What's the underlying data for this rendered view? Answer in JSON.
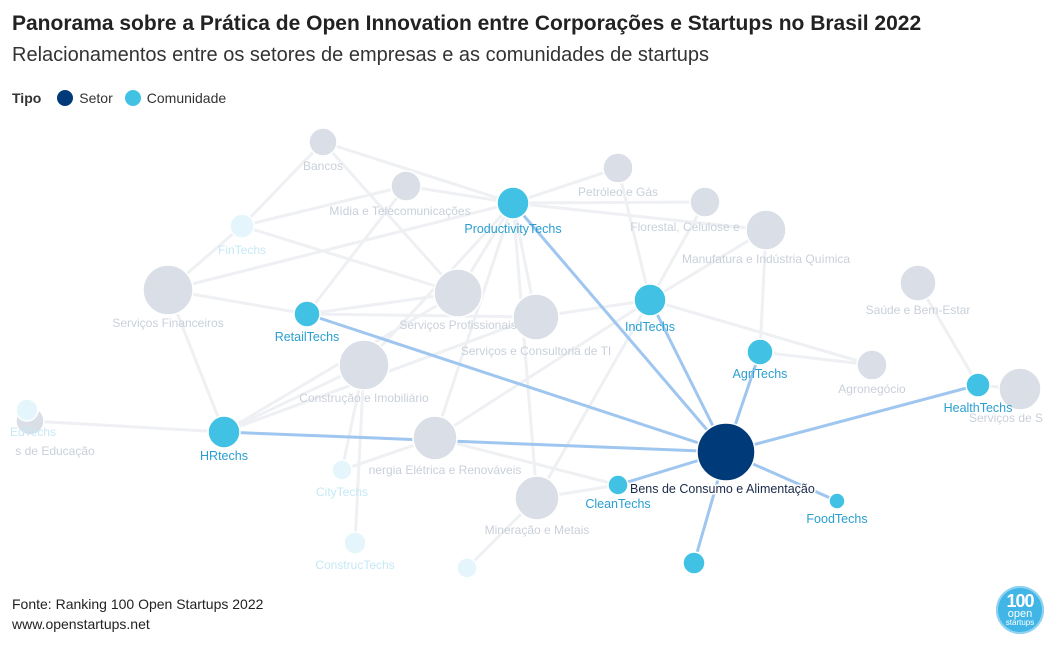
{
  "header": {
    "title": "Panorama sobre a Prática de Open Innovation entre Corporações e Startups no Brasil 2022",
    "subtitle": "Relacionamentos entre os setores de empresas e as comunidades de startups"
  },
  "legend": {
    "title": "Tipo",
    "items": [
      {
        "label": "Setor",
        "color": "#003a79"
      },
      {
        "label": "Comunidade",
        "color": "#41c2e4"
      }
    ]
  },
  "footer": {
    "source": "Fonte: Ranking 100 Open Startups 2022",
    "url": "www.openstartups.net"
  },
  "logo": {
    "line1": "100",
    "line2": "open",
    "line3": "startups"
  },
  "colors": {
    "setor_highlight": "#003a79",
    "comunidade_highlight": "#41c2e4",
    "setor_faded": "#dadfe7",
    "comunidade_faded": "#e4f5fb",
    "edge_highlight": "#9fc6ef",
    "edge_faded": "#eef0f3",
    "label_setor_highlight": "#1a2a4a",
    "label_comunidade_highlight": "#2a9fcf",
    "label_setor_faded": "#c9d0da",
    "label_comunidade_faded": "#c5e8f5"
  },
  "chart_data": {
    "type": "network",
    "focus_node": "Bens de Consumo e Alimentação",
    "nodes": [
      {
        "id": "Bens de Consumo e Alimentação",
        "type": "Setor",
        "highlighted": true
      },
      {
        "id": "Bancos",
        "type": "Setor",
        "highlighted": false
      },
      {
        "id": "Mídia e Telecomunicações",
        "type": "Setor",
        "highlighted": false
      },
      {
        "id": "Petróleo e Gás",
        "type": "Setor",
        "highlighted": false
      },
      {
        "id": "Florestal, Celulose e",
        "type": "Setor",
        "highlighted": false
      },
      {
        "id": "Manufatura e Indústria Química",
        "type": "Setor",
        "highlighted": false
      },
      {
        "id": "Serviços Financeiros",
        "type": "Setor",
        "highlighted": false
      },
      {
        "id": "Serviços Profissionais",
        "type": "Setor",
        "highlighted": false
      },
      {
        "id": "Serviços e Consultoria de TI",
        "type": "Setor",
        "highlighted": false
      },
      {
        "id": "Saúde e Bem-Estar",
        "type": "Setor",
        "highlighted": false
      },
      {
        "id": "Construção e Imobiliário",
        "type": "Setor",
        "highlighted": false
      },
      {
        "id": "Agronegócio",
        "type": "Setor",
        "highlighted": false
      },
      {
        "id": "Serviços de S",
        "type": "Setor",
        "highlighted": false
      },
      {
        "id": "s de Educação",
        "type": "Setor",
        "highlighted": false
      },
      {
        "id": "nergia Elétrica e Renováveis",
        "type": "Setor",
        "highlighted": false
      },
      {
        "id": "Mineração e Metais",
        "type": "Setor",
        "highlighted": false
      },
      {
        "id": "ProductivityTechs",
        "type": "Comunidade",
        "highlighted": true
      },
      {
        "id": "IndTechs",
        "type": "Comunidade",
        "highlighted": true
      },
      {
        "id": "RetailTechs",
        "type": "Comunidade",
        "highlighted": true
      },
      {
        "id": "AgriTechs",
        "type": "Comunidade",
        "highlighted": true
      },
      {
        "id": "HealthTechs",
        "type": "Comunidade",
        "highlighted": true
      },
      {
        "id": "HRtechs",
        "type": "Comunidade",
        "highlighted": true
      },
      {
        "id": "CleanTechs",
        "type": "Comunidade",
        "highlighted": true
      },
      {
        "id": "FoodTechs",
        "type": "Comunidade",
        "highlighted": true
      },
      {
        "id": "",
        "type": "Comunidade",
        "highlighted": true
      },
      {
        "id": "FinTechs",
        "type": "Comunidade",
        "highlighted": false
      },
      {
        "id": "CityTechs",
        "type": "Comunidade",
        "highlighted": false
      },
      {
        "id": "ConstrucTechs",
        "type": "Comunidade",
        "highlighted": false
      },
      {
        "id": "EdTechs",
        "type": "Comunidade",
        "highlighted": false
      },
      {
        "id": " ",
        "type": "Comunidade",
        "highlighted": false
      }
    ],
    "highlighted_edges": [
      [
        "Bens de Consumo e Alimentação",
        "ProductivityTechs"
      ],
      [
        "Bens de Consumo e Alimentação",
        "IndTechs"
      ],
      [
        "Bens de Consumo e Alimentação",
        "RetailTechs"
      ],
      [
        "Bens de Consumo e Alimentação",
        "AgriTechs"
      ],
      [
        "Bens de Consumo e Alimentação",
        "HealthTechs"
      ],
      [
        "Bens de Consumo e Alimentação",
        "HRtechs"
      ],
      [
        "Bens de Consumo e Alimentação",
        "CleanTechs"
      ],
      [
        "Bens de Consumo e Alimentação",
        "FoodTechs"
      ],
      [
        "Bens de Consumo e Alimentação",
        ""
      ]
    ],
    "faded_edges": [
      [
        "Bancos",
        "FinTechs"
      ],
      [
        "Bancos",
        "ProductivityTechs"
      ],
      [
        "Bancos",
        "Serviços Profissionais"
      ],
      [
        "Mídia e Telecomunicações",
        "ProductivityTechs"
      ],
      [
        "Mídia e Telecomunicações",
        "FinTechs"
      ],
      [
        "Mídia e Telecomunicações",
        "RetailTechs"
      ],
      [
        "Petróleo e Gás",
        "ProductivityTechs"
      ],
      [
        "Petróleo e Gás",
        "IndTechs"
      ],
      [
        "Florestal, Celulose e",
        "IndTechs"
      ],
      [
        "Florestal, Celulose e",
        "ProductivityTechs"
      ],
      [
        "Manufatura e Indústria Química",
        "IndTechs"
      ],
      [
        "Manufatura e Indústria Química",
        "ProductivityTechs"
      ],
      [
        "Manufatura e Indústria Química",
        "AgriTechs"
      ],
      [
        "Serviços Financeiros",
        "FinTechs"
      ],
      [
        "Serviços Financeiros",
        "RetailTechs"
      ],
      [
        "Serviços Financeiros",
        "HRtechs"
      ],
      [
        "Serviços Financeiros",
        "ProductivityTechs"
      ],
      [
        "Serviços Profissionais",
        "ProductivityTechs"
      ],
      [
        "Serviços Profissionais",
        "RetailTechs"
      ],
      [
        "Serviços Profissionais",
        "HRtechs"
      ],
      [
        "Serviços Profissionais",
        "FinTechs"
      ],
      [
        "Serviços e Consultoria de TI",
        "ProductivityTechs"
      ],
      [
        "Serviços e Consultoria de TI",
        "IndTechs"
      ],
      [
        "Serviços e Consultoria de TI",
        "HRtechs"
      ],
      [
        "Serviços e Consultoria de TI",
        "RetailTechs"
      ],
      [
        "Saúde e Bem-Estar",
        "HealthTechs"
      ],
      [
        "Construção e Imobiliário",
        "ConstrucTechs"
      ],
      [
        "Construção e Imobiliário",
        "CityTechs"
      ],
      [
        "Construção e Imobiliário",
        "ProductivityTechs"
      ],
      [
        "Construção e Imobiliário",
        "HRtechs"
      ],
      [
        "Agronegócio",
        "AgriTechs"
      ],
      [
        "Agronegócio",
        "IndTechs"
      ],
      [
        "Serviços de S",
        "HealthTechs"
      ],
      [
        "s de Educação",
        "HRtechs"
      ],
      [
        "s de Educação",
        "EdTechs"
      ],
      [
        "nergia Elétrica e Renováveis",
        "CleanTechs"
      ],
      [
        "nergia Elétrica e Renováveis",
        "CityTechs"
      ],
      [
        "nergia Elétrica e Renováveis",
        "IndTechs"
      ],
      [
        "nergia Elétrica e Renováveis",
        "ProductivityTechs"
      ],
      [
        "Mineração e Metais",
        "IndTechs"
      ],
      [
        "Mineração e Metais",
        "CleanTechs"
      ],
      [
        "Mineração e Metais",
        "ProductivityTechs"
      ],
      [
        "Mineração e Metais",
        " "
      ]
    ]
  }
}
